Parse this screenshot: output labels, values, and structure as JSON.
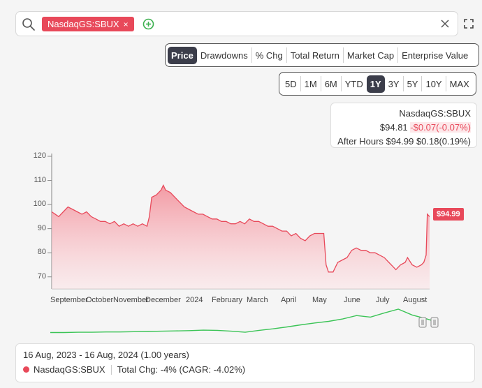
{
  "search": {
    "ticker": "NasdaqGS:SBUX",
    "remove_symbol": "×"
  },
  "metric_tabs": [
    "Price",
    "Drawdowns",
    "% Chg",
    "Total Return",
    "Market Cap",
    "Enterprise Value"
  ],
  "active_metric": "Price",
  "range_tabs": [
    "5D",
    "1M",
    "6M",
    "YTD",
    "1Y",
    "3Y",
    "5Y",
    "10Y",
    "MAX"
  ],
  "active_range": "1Y",
  "quote": {
    "ticker": "NasdaqGS:SBUX",
    "price": "$94.81",
    "change": "-$0.07(-0.07%)",
    "after_hours_label": "After Hours",
    "after_hours_price": "$94.99",
    "after_hours_change": "$0.18(0.19%)"
  },
  "last_price_tag": "$94.99",
  "colors": {
    "accent": "#e8495a",
    "mini_line": "#3cc457",
    "active_tab": "#3b3d4a"
  },
  "chart_data": {
    "type": "area",
    "ylim": [
      65,
      120
    ],
    "yticks": [
      120,
      110,
      100,
      90,
      80,
      70
    ],
    "xtick_labels": [
      "September",
      "October",
      "November",
      "December",
      "2024",
      "February",
      "March",
      "April",
      "May",
      "June",
      "July",
      "August"
    ],
    "series": [
      {
        "points": [
          [
            0,
            97
          ],
          [
            3,
            96
          ],
          [
            6,
            95
          ],
          [
            10,
            97
          ],
          [
            14,
            99
          ],
          [
            18,
            98
          ],
          [
            22,
            97
          ],
          [
            26,
            96
          ],
          [
            30,
            97
          ],
          [
            34,
            95
          ],
          [
            38,
            94
          ],
          [
            42,
            93
          ],
          [
            46,
            93
          ],
          [
            50,
            92
          ],
          [
            54,
            93
          ],
          [
            58,
            91
          ],
          [
            62,
            92
          ],
          [
            66,
            91
          ],
          [
            70,
            92
          ],
          [
            74,
            91
          ],
          [
            78,
            92
          ],
          [
            82,
            91
          ],
          [
            84,
            95
          ],
          [
            86,
            103
          ],
          [
            90,
            104
          ],
          [
            94,
            106
          ],
          [
            96,
            108
          ],
          [
            98,
            106
          ],
          [
            102,
            105
          ],
          [
            106,
            103
          ],
          [
            110,
            101
          ],
          [
            114,
            99
          ],
          [
            118,
            98
          ],
          [
            122,
            97
          ],
          [
            126,
            96
          ],
          [
            130,
            96
          ],
          [
            134,
            95
          ],
          [
            138,
            94
          ],
          [
            142,
            94
          ],
          [
            146,
            93
          ],
          [
            150,
            93
          ],
          [
            154,
            92
          ],
          [
            158,
            92
          ],
          [
            162,
            93
          ],
          [
            166,
            92
          ],
          [
            170,
            94
          ],
          [
            174,
            93
          ],
          [
            178,
            93
          ],
          [
            182,
            92
          ],
          [
            186,
            91
          ],
          [
            190,
            91
          ],
          [
            194,
            90
          ],
          [
            198,
            89
          ],
          [
            202,
            89
          ],
          [
            206,
            87
          ],
          [
            210,
            88
          ],
          [
            214,
            86
          ],
          [
            218,
            85
          ],
          [
            222,
            87
          ],
          [
            226,
            88
          ],
          [
            230,
            88
          ],
          [
            234,
            88
          ],
          [
            236,
            75
          ],
          [
            238,
            72
          ],
          [
            242,
            72
          ],
          [
            246,
            76
          ],
          [
            250,
            77
          ],
          [
            254,
            78
          ],
          [
            258,
            81
          ],
          [
            262,
            82
          ],
          [
            266,
            81
          ],
          [
            270,
            81
          ],
          [
            274,
            80
          ],
          [
            278,
            80
          ],
          [
            282,
            79
          ],
          [
            286,
            78
          ],
          [
            290,
            76
          ],
          [
            294,
            74
          ],
          [
            296,
            73
          ],
          [
            300,
            75
          ],
          [
            304,
            76
          ],
          [
            306,
            78
          ],
          [
            310,
            75
          ],
          [
            314,
            74
          ],
          [
            318,
            75
          ],
          [
            320,
            76
          ],
          [
            322,
            79
          ],
          [
            323,
            96
          ],
          [
            325,
            95
          ]
        ]
      }
    ]
  },
  "mini_chart": {
    "points": [
      [
        0,
        0.04
      ],
      [
        20,
        0.04
      ],
      [
        40,
        0.05
      ],
      [
        60,
        0.05
      ],
      [
        80,
        0.06
      ],
      [
        100,
        0.06
      ],
      [
        120,
        0.07
      ],
      [
        140,
        0.08
      ],
      [
        160,
        0.09
      ],
      [
        180,
        0.1
      ],
      [
        200,
        0.11
      ],
      [
        220,
        0.13
      ],
      [
        240,
        0.12
      ],
      [
        260,
        0.09
      ],
      [
        280,
        0.05
      ],
      [
        300,
        0.12
      ],
      [
        320,
        0.18
      ],
      [
        340,
        0.25
      ],
      [
        360,
        0.33
      ],
      [
        380,
        0.4
      ],
      [
        400,
        0.46
      ],
      [
        420,
        0.55
      ],
      [
        440,
        0.68
      ],
      [
        460,
        0.62
      ],
      [
        480,
        0.78
      ],
      [
        500,
        0.92
      ],
      [
        520,
        0.7
      ],
      [
        540,
        0.56
      ],
      [
        550,
        0.48
      ]
    ]
  },
  "summary": {
    "date_range": "16 Aug, 2023 - 16 Aug, 2024 (1.00 years)",
    "ticker": "NasdaqGS:SBUX",
    "total_change": "Total Chg: -4% (CAGR: -4.02%)"
  }
}
